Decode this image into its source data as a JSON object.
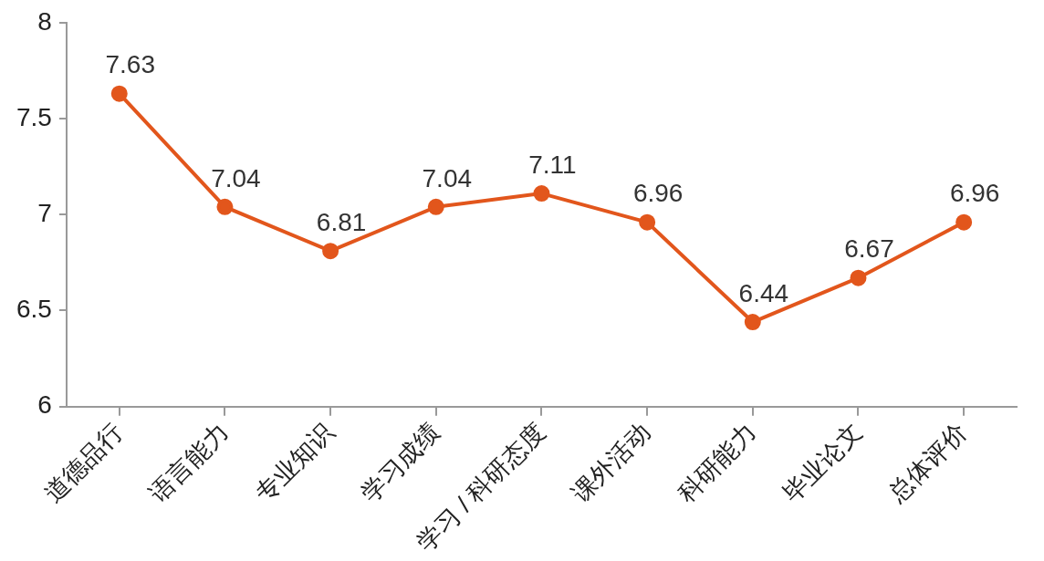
{
  "chart_data": {
    "type": "line",
    "categories": [
      "道德品行",
      "语言能力",
      "专业知识",
      "学习成绩",
      "学习 / 科研态度",
      "课外活动",
      "科研能力",
      "毕业论文",
      "总体评价"
    ],
    "series": [
      {
        "color": "#e2561c",
        "values": [
          7.63,
          7.04,
          6.81,
          7.04,
          7.11,
          6.96,
          6.44,
          6.67,
          6.96
        ]
      }
    ],
    "ylim": [
      6,
      8
    ],
    "yticks": [
      6,
      6.5,
      7,
      7.5,
      8
    ],
    "grid": false,
    "legend": false,
    "marker": "circle",
    "line_style": "solid",
    "data_labels": true
  }
}
